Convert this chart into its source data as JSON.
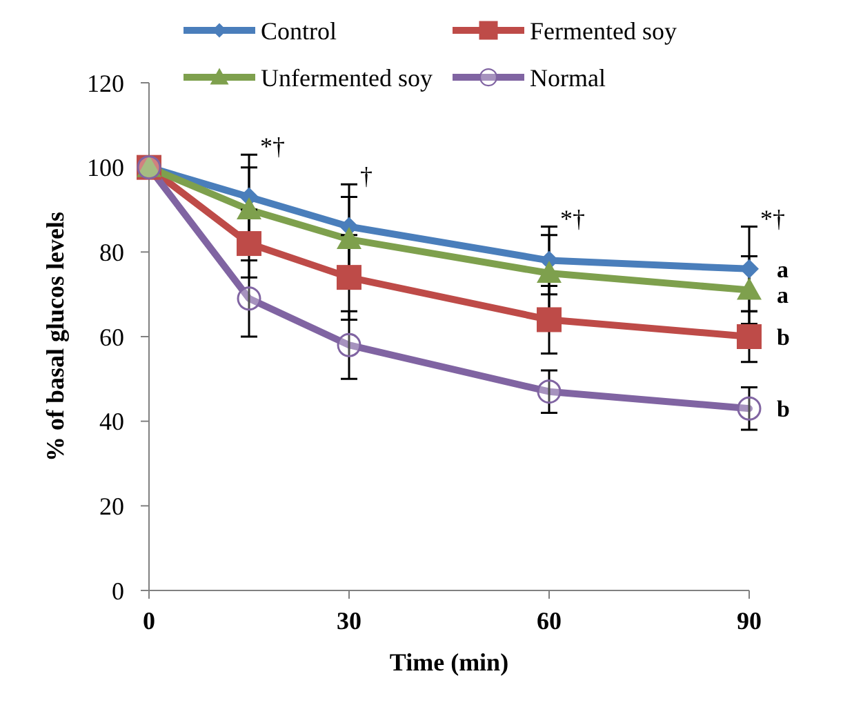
{
  "chart_data": {
    "type": "line",
    "xlabel": "Time (min)",
    "ylabel": "% of basal glucos levels",
    "x": [
      0,
      15,
      30,
      60,
      90
    ],
    "xlim": [
      0,
      90
    ],
    "xticks": [
      0,
      30,
      60,
      90
    ],
    "ylim": [
      0,
      120
    ],
    "yticks": [
      0,
      20,
      40,
      60,
      80,
      100,
      120
    ],
    "grid": false,
    "legend": "top",
    "line_style": "solid",
    "series": [
      {
        "name": "Control",
        "color": "#4a7ebb",
        "marker": "diamond",
        "values": [
          100,
          93,
          86,
          78,
          76
        ],
        "errors": [
          null,
          10,
          10,
          8,
          10
        ]
      },
      {
        "name": "Fermented soy",
        "color": "#be4b48",
        "marker": "square",
        "values": [
          100,
          82,
          74,
          64,
          60
        ],
        "errors": [
          null,
          8,
          10,
          8,
          6
        ]
      },
      {
        "name": "Unfermented soy",
        "color": "#7ea04d",
        "marker": "triangle",
        "values": [
          100,
          90,
          83,
          75,
          71
        ],
        "errors": [
          null,
          10,
          10,
          9,
          8
        ]
      },
      {
        "name": "Normal",
        "color": "#8064a2",
        "marker": "circle",
        "values": [
          100,
          69,
          58,
          47,
          43
        ],
        "errors": [
          null,
          9,
          8,
          5,
          5
        ]
      }
    ],
    "annotations": [
      {
        "text": "*†",
        "x": 15,
        "y": 103
      },
      {
        "text": "†",
        "x": 30,
        "y": 96
      },
      {
        "text": "*†",
        "x": 60,
        "y": 86
      },
      {
        "text": "*†",
        "x": 90,
        "y": 86
      },
      {
        "text": "a",
        "x": 90,
        "y": 76
      },
      {
        "text": "a",
        "x": 90,
        "y": 70
      },
      {
        "text": "b",
        "x": 90,
        "y": 60
      },
      {
        "text": "b",
        "x": 90,
        "y": 43
      }
    ]
  }
}
